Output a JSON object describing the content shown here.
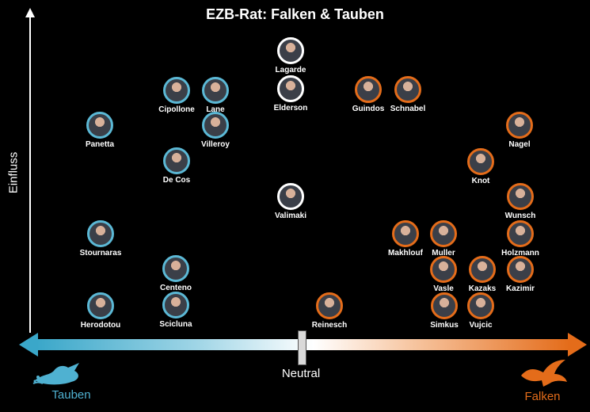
{
  "title": "EZB-Rat: Falken & Tauben",
  "axes": {
    "y_label": "Einfluss"
  },
  "scale": {
    "neutral_label": "Neutral",
    "dove_label": "Tauben",
    "hawk_label": "Falken"
  },
  "colors": {
    "dove": "#5bb8d5",
    "hawk": "#e46c1a",
    "neutral": "#ffffff",
    "background": "#000000"
  },
  "icons": {
    "dove": "dove-icon",
    "hawk": "hawk-icon"
  },
  "members": [
    {
      "name": "Lagarde",
      "stance": "neutral"
    },
    {
      "name": "Cipollone",
      "stance": "dove"
    },
    {
      "name": "Lane",
      "stance": "dove"
    },
    {
      "name": "Elderson",
      "stance": "neutral"
    },
    {
      "name": "Guindos",
      "stance": "hawk"
    },
    {
      "name": "Schnabel",
      "stance": "hawk"
    },
    {
      "name": "Panetta",
      "stance": "dove"
    },
    {
      "name": "Villeroy",
      "stance": "dove"
    },
    {
      "name": "Nagel",
      "stance": "hawk"
    },
    {
      "name": "De Cos",
      "stance": "dove"
    },
    {
      "name": "Knot",
      "stance": "hawk"
    },
    {
      "name": "Valimaki",
      "stance": "neutral"
    },
    {
      "name": "Wunsch",
      "stance": "hawk"
    },
    {
      "name": "Stournaras",
      "stance": "dove"
    },
    {
      "name": "Makhlouf",
      "stance": "hawk"
    },
    {
      "name": "Muller",
      "stance": "hawk"
    },
    {
      "name": "Holzmann",
      "stance": "hawk"
    },
    {
      "name": "Centeno",
      "stance": "dove"
    },
    {
      "name": "Vasle",
      "stance": "hawk"
    },
    {
      "name": "Kazaks",
      "stance": "hawk"
    },
    {
      "name": "Kazimir",
      "stance": "hawk"
    },
    {
      "name": "Herodotou",
      "stance": "dove"
    },
    {
      "name": "Scicluna",
      "stance": "dove"
    },
    {
      "name": "Reinesch",
      "stance": "hawk"
    },
    {
      "name": "Simkus",
      "stance": "hawk"
    },
    {
      "name": "Vujcic",
      "stance": "hawk"
    }
  ]
}
